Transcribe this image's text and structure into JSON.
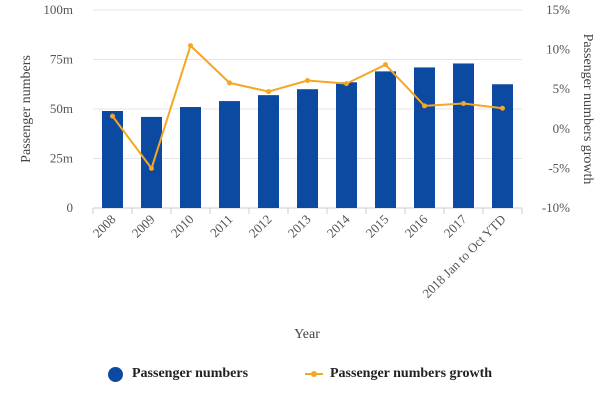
{
  "chart_data": {
    "type": "bar",
    "categories": [
      "2008",
      "2009",
      "2010",
      "2011",
      "2012",
      "2013",
      "2014",
      "2015",
      "2016",
      "2017",
      "2018 Jan to Oct YTD"
    ],
    "series": [
      {
        "name": "Passenger numbers",
        "type": "bar",
        "axis": "left",
        "color": "#0b4aa0",
        "values": [
          49,
          46,
          51,
          54,
          57,
          60,
          63.5,
          69,
          71,
          73,
          62.5
        ]
      },
      {
        "name": "Passenger numbers growth",
        "type": "line",
        "axis": "right",
        "color": "#f5a623",
        "values": [
          1.6,
          -5,
          10.5,
          5.8,
          4.7,
          6.1,
          5.7,
          8.1,
          2.9,
          3.2,
          2.6
        ]
      }
    ],
    "xlabel": "Year",
    "ylabel": "Passenger numbers",
    "ylabel_right": "Passenger numbers growth",
    "ylim": [
      0,
      100
    ],
    "ylim_right": [
      -10,
      15
    ],
    "yticks": [
      "0",
      "25m",
      "50m",
      "75m",
      "100m"
    ],
    "yticks_right": [
      "-10%",
      "-5%",
      "0%",
      "5%",
      "10%",
      "15%"
    ],
    "grid": true,
    "legend_position": "bottom"
  }
}
